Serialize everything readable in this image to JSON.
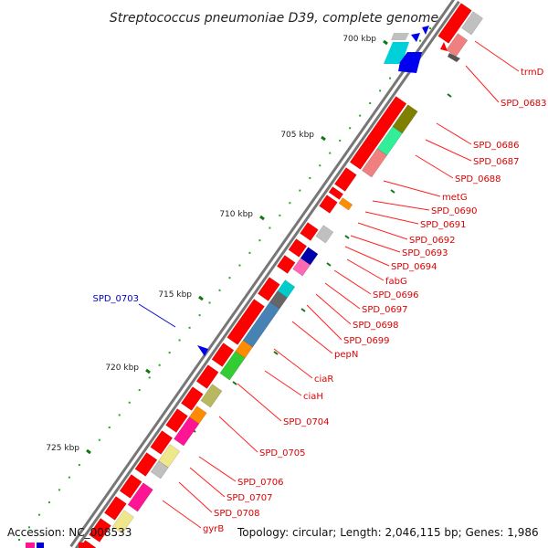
{
  "title": "Streptococcus pneumoniae D39, complete genome",
  "footer": {
    "accession": "Accession: NC_008533",
    "topology": "Topology: circular; Length: 2,046,115 bp; Genes: 1,986"
  },
  "ticks": [
    "700 kbp",
    "705 kbp",
    "710 kbp",
    "715 kbp",
    "720 kbp",
    "725 kbp"
  ],
  "colors": {
    "forward_gene": "#ff0000",
    "label_line": "#ff2020",
    "reverse_label": "#0000cc",
    "backbone": "#888888"
  },
  "genes": [
    {
      "label": "trmD",
      "strand": "forward"
    },
    {
      "label": "SPD_0683",
      "strand": "forward"
    },
    {
      "label": "SPD_0686",
      "strand": "forward"
    },
    {
      "label": "SPD_0687",
      "strand": "forward"
    },
    {
      "label": "SPD_0688",
      "strand": "forward"
    },
    {
      "label": "metG",
      "strand": "forward"
    },
    {
      "label": "SPD_0690",
      "strand": "forward"
    },
    {
      "label": "SPD_0691",
      "strand": "forward"
    },
    {
      "label": "SPD_0692",
      "strand": "forward"
    },
    {
      "label": "SPD_0693",
      "strand": "forward"
    },
    {
      "label": "SPD_0694",
      "strand": "forward"
    },
    {
      "label": "fabG",
      "strand": "forward"
    },
    {
      "label": "SPD_0696",
      "strand": "forward"
    },
    {
      "label": "SPD_0697",
      "strand": "forward"
    },
    {
      "label": "SPD_0698",
      "strand": "forward"
    },
    {
      "label": "SPD_0699",
      "strand": "forward"
    },
    {
      "label": "pepN",
      "strand": "forward"
    },
    {
      "label": "ciaR",
      "strand": "forward"
    },
    {
      "label": "ciaH",
      "strand": "forward"
    },
    {
      "label": "SPD_0704",
      "strand": "forward"
    },
    {
      "label": "SPD_0705",
      "strand": "forward"
    },
    {
      "label": "SPD_0706",
      "strand": "forward"
    },
    {
      "label": "SPD_0707",
      "strand": "forward"
    },
    {
      "label": "SPD_0708",
      "strand": "forward"
    },
    {
      "label": "gyrB",
      "strand": "forward"
    },
    {
      "label": "SPD_0703",
      "strand": "reverse"
    }
  ]
}
